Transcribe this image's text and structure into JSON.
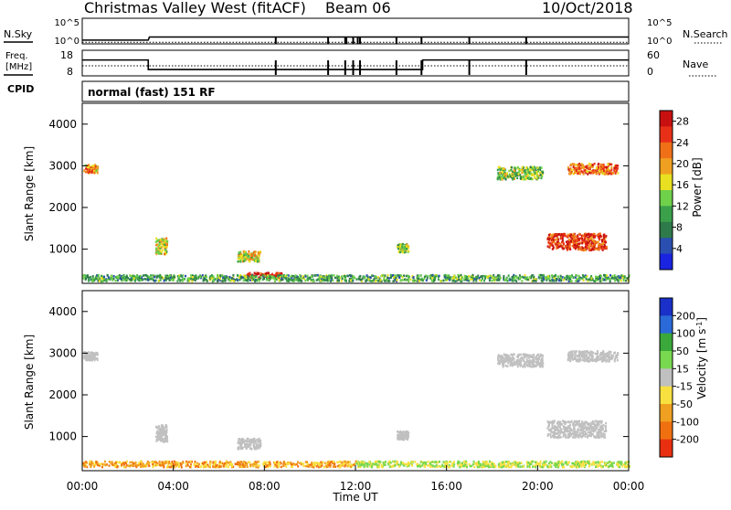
{
  "header": {
    "station": "Christmas Valley West (fitACF)",
    "beam": "Beam 06",
    "date": "10/Oct/2018"
  },
  "chart_data": [
    {
      "type": "line",
      "panel": "noise",
      "left_label": "N.Sky",
      "right_label": "N.Search",
      "left_ticks": [
        "10^5",
        "10^0"
      ],
      "right_ticks": [
        "10^5",
        "10^0"
      ],
      "series": [
        {
          "name": "N.Sky",
          "style": "solid",
          "x": [
            0,
            2.9,
            2.95,
            24
          ],
          "y": [
            0.12,
            0.12,
            0.25,
            0.25
          ]
        },
        {
          "name": "N.Search",
          "style": "dotted",
          "x": [
            0,
            24
          ],
          "y": [
            0.03,
            0.03
          ]
        }
      ],
      "drops_hours": [
        8.5,
        10.8,
        11.55,
        11.6,
        11.9,
        12.1,
        12.2,
        13.8,
        14.9,
        17,
        19.5
      ],
      "xlim": [
        0,
        24
      ]
    },
    {
      "type": "line",
      "panel": "frequency",
      "left_label": "Freq. [MHz]",
      "right_label": "Nave",
      "ylim_left": [
        8,
        18
      ],
      "ylim_right": [
        0,
        60
      ],
      "left_ticks": [
        "18",
        "8"
      ],
      "right_ticks": [
        "60",
        "0"
      ],
      "series": [
        {
          "name": "Freq.",
          "style": "solid",
          "x": [
            0,
            2.9,
            2.9,
            14.95,
            14.95,
            24
          ],
          "y": [
            14.3,
            14.3,
            10.3,
            10.3,
            14.3,
            14.3
          ]
        },
        {
          "name": "Nave",
          "style": "dotted",
          "x": [
            0,
            24
          ],
          "y": [
            23,
            23
          ]
        }
      ],
      "drops_hours": [
        8.5,
        10.8,
        11.55,
        11.9,
        12.2,
        13.8,
        14.9,
        17,
        19.5
      ]
    },
    {
      "type": "table",
      "panel": "cpid",
      "label": "CPID",
      "value": "normal (fast) 151 RF"
    },
    {
      "type": "heatmap",
      "panel": "power",
      "xlabel": "",
      "ylabel": "Slant Range [km]",
      "xlim": [
        0,
        24
      ],
      "ylim": [
        180,
        4500
      ],
      "yticks": [
        1000,
        2000,
        3000,
        4000
      ],
      "colorbar": {
        "label": "Power [dB]",
        "ticks": [
          "4",
          "8",
          "12",
          "16",
          "20",
          "24",
          "28"
        ],
        "colors": [
          "#1a24e0",
          "#2a4fb0",
          "#2e7a4a",
          "#3aa04a",
          "#6fd04a",
          "#e8e020",
          "#f0a020",
          "#f07018",
          "#e83018",
          "#c81010"
        ]
      },
      "blobs": [
        {
          "x": 0.05,
          "w": 0.6,
          "y": 2950,
          "h": 200,
          "v": 0.6
        },
        {
          "x": 3.2,
          "w": 0.5,
          "y": 1100,
          "h": 400,
          "v": 0.5
        },
        {
          "x": 6.8,
          "w": 1.0,
          "y": 850,
          "h": 250,
          "v": 0.5
        },
        {
          "x": 7.2,
          "w": 1.6,
          "y": 400,
          "h": 120,
          "v": 0.9
        },
        {
          "x": 13.8,
          "w": 0.5,
          "y": 1050,
          "h": 200,
          "v": 0.4
        },
        {
          "x": 18.2,
          "w": 2.0,
          "y": 2850,
          "h": 300,
          "v": 0.4
        },
        {
          "x": 20.4,
          "w": 2.6,
          "y": 1200,
          "h": 400,
          "v": 0.8
        },
        {
          "x": 21.3,
          "w": 2.2,
          "y": 2950,
          "h": 250,
          "v": 0.7
        },
        {
          "x": 0,
          "w": 24,
          "y": 330,
          "h": 150,
          "v": 0.3
        }
      ]
    },
    {
      "type": "heatmap",
      "panel": "velocity",
      "xlabel": "Time UT",
      "ylabel": "Slant Range [km]",
      "xlim": [
        0,
        24
      ],
      "ylim": [
        180,
        4500
      ],
      "yticks": [
        1000,
        2000,
        3000,
        4000
      ],
      "xticks": [
        "00:00",
        "04:00",
        "08:00",
        "12:00",
        "16:00",
        "20:00",
        "00:00"
      ],
      "colorbar": {
        "label": "Velocity [m s^-1]",
        "ticks": [
          "200",
          "100",
          "50",
          "15",
          "-15",
          "-50",
          "-100",
          "-200"
        ],
        "colors": [
          "#1a30c8",
          "#2a6ad8",
          "#3aa83a",
          "#78d850",
          "#c0c0c0",
          "#f8e040",
          "#f0a020",
          "#f07010",
          "#e83010"
        ]
      },
      "blobs": [
        {
          "x": 0.05,
          "w": 0.6,
          "y": 2950,
          "h": 200,
          "v": 0.5
        },
        {
          "x": 3.2,
          "w": 0.5,
          "y": 1100,
          "h": 400,
          "v": 0.5
        },
        {
          "x": 6.8,
          "w": 1.0,
          "y": 850,
          "h": 250,
          "v": 0.5
        },
        {
          "x": 13.8,
          "w": 0.5,
          "y": 1050,
          "h": 200,
          "v": 0.5
        },
        {
          "x": 18.2,
          "w": 2.0,
          "y": 2850,
          "h": 300,
          "v": 0.5
        },
        {
          "x": 20.4,
          "w": 2.6,
          "y": 1200,
          "h": 400,
          "v": 0.5
        },
        {
          "x": 21.3,
          "w": 2.2,
          "y": 2950,
          "h": 250,
          "v": 0.5
        },
        {
          "x": 0,
          "w": 12,
          "y": 360,
          "h": 140,
          "v": 0.8
        },
        {
          "x": 12,
          "w": 12,
          "y": 360,
          "h": 140,
          "v": 0.65
        }
      ]
    }
  ]
}
